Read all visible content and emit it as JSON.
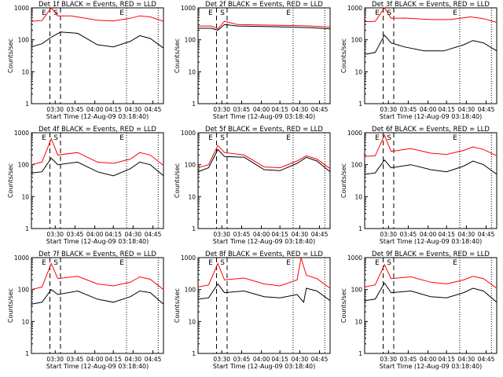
{
  "chart_data": {
    "type": "line",
    "yscale": "log",
    "ylim": [
      1,
      1000
    ],
    "x_tick_labels": [
      "03:30",
      "03:45",
      "04:00",
      "04:15",
      "04:30",
      "04:45"
    ],
    "y_tick_labels": [
      "1",
      "10",
      "100",
      "1000"
    ],
    "xlabel": "Start Time (12-Aug-09 03:18:40)",
    "ylabel": "Counts/sec",
    "legend_text": "BLACK = Events, RED = LLD",
    "colors": {
      "events": "#000000",
      "lld": "#ff0000"
    },
    "x_hours_span": [
      "03:18:40",
      "04:58:00"
    ],
    "marker_labels": [
      "E",
      "S",
      "E"
    ],
    "panels": [
      {
        "title": "Det 1f",
        "events": [
          [
            0,
            60
          ],
          [
            0.08,
            75
          ],
          [
            0.15,
            120
          ],
          [
            0.22,
            175
          ],
          [
            0.35,
            160
          ],
          [
            0.5,
            70
          ],
          [
            0.62,
            60
          ],
          [
            0.75,
            90
          ],
          [
            0.82,
            135
          ],
          [
            0.9,
            110
          ],
          [
            1,
            55
          ]
        ],
        "lld": [
          [
            0,
            380
          ],
          [
            0.08,
            400
          ],
          [
            0.15,
            1000
          ],
          [
            0.2,
            560
          ],
          [
            0.3,
            560
          ],
          [
            0.5,
            410
          ],
          [
            0.62,
            390
          ],
          [
            0.75,
            470
          ],
          [
            0.82,
            560
          ],
          [
            0.9,
            520
          ],
          [
            1,
            380
          ]
        ]
      },
      {
        "title": "Det 2f",
        "events": [
          [
            0,
            230
          ],
          [
            0.1,
            230
          ],
          [
            0.15,
            200
          ],
          [
            0.2,
            300
          ],
          [
            0.3,
            270
          ],
          [
            0.5,
            260
          ],
          [
            0.7,
            250
          ],
          [
            0.85,
            240
          ],
          [
            1,
            220
          ]
        ],
        "lld": [
          [
            0,
            270
          ],
          [
            0.1,
            270
          ],
          [
            0.15,
            220
          ],
          [
            0.2,
            380
          ],
          [
            0.3,
            300
          ],
          [
            0.5,
            290
          ],
          [
            0.7,
            280
          ],
          [
            0.85,
            270
          ],
          [
            1,
            250
          ]
        ]
      },
      {
        "title": "Det 3f",
        "events": [
          [
            0,
            35
          ],
          [
            0.08,
            40
          ],
          [
            0.15,
            140
          ],
          [
            0.2,
            80
          ],
          [
            0.3,
            60
          ],
          [
            0.45,
            45
          ],
          [
            0.6,
            45
          ],
          [
            0.75,
            70
          ],
          [
            0.82,
            95
          ],
          [
            0.9,
            80
          ],
          [
            1,
            45
          ]
        ],
        "lld": [
          [
            0,
            370
          ],
          [
            0.08,
            380
          ],
          [
            0.15,
            1000
          ],
          [
            0.2,
            470
          ],
          [
            0.3,
            480
          ],
          [
            0.5,
            430
          ],
          [
            0.65,
            430
          ],
          [
            0.8,
            520
          ],
          [
            0.9,
            460
          ],
          [
            1,
            350
          ]
        ]
      },
      {
        "title": "Det 4f",
        "events": [
          [
            0,
            55
          ],
          [
            0.08,
            60
          ],
          [
            0.15,
            160
          ],
          [
            0.2,
            100
          ],
          [
            0.35,
            120
          ],
          [
            0.5,
            60
          ],
          [
            0.62,
            45
          ],
          [
            0.75,
            75
          ],
          [
            0.82,
            120
          ],
          [
            0.9,
            100
          ],
          [
            1,
            45
          ]
        ],
        "lld": [
          [
            0,
            100
          ],
          [
            0.08,
            120
          ],
          [
            0.15,
            650
          ],
          [
            0.2,
            200
          ],
          [
            0.35,
            240
          ],
          [
            0.5,
            120
          ],
          [
            0.62,
            110
          ],
          [
            0.75,
            150
          ],
          [
            0.82,
            240
          ],
          [
            0.9,
            200
          ],
          [
            1,
            95
          ]
        ]
      },
      {
        "title": "Det 5f",
        "events": [
          [
            0,
            60
          ],
          [
            0.08,
            80
          ],
          [
            0.15,
            300
          ],
          [
            0.2,
            180
          ],
          [
            0.35,
            170
          ],
          [
            0.5,
            70
          ],
          [
            0.62,
            65
          ],
          [
            0.75,
            110
          ],
          [
            0.82,
            170
          ],
          [
            0.9,
            130
          ],
          [
            1,
            60
          ]
        ],
        "lld": [
          [
            0,
            80
          ],
          [
            0.08,
            100
          ],
          [
            0.15,
            400
          ],
          [
            0.2,
            240
          ],
          [
            0.35,
            200
          ],
          [
            0.5,
            85
          ],
          [
            0.62,
            80
          ],
          [
            0.75,
            130
          ],
          [
            0.82,
            190
          ],
          [
            0.9,
            150
          ],
          [
            1,
            75
          ]
        ]
      },
      {
        "title": "Det 6f",
        "events": [
          [
            0,
            50
          ],
          [
            0.08,
            55
          ],
          [
            0.15,
            140
          ],
          [
            0.2,
            80
          ],
          [
            0.35,
            100
          ],
          [
            0.5,
            70
          ],
          [
            0.62,
            60
          ],
          [
            0.75,
            90
          ],
          [
            0.82,
            130
          ],
          [
            0.9,
            100
          ],
          [
            1,
            50
          ]
        ],
        "lld": [
          [
            0,
            180
          ],
          [
            0.08,
            190
          ],
          [
            0.15,
            850
          ],
          [
            0.2,
            260
          ],
          [
            0.35,
            320
          ],
          [
            0.5,
            230
          ],
          [
            0.62,
            210
          ],
          [
            0.75,
            280
          ],
          [
            0.82,
            360
          ],
          [
            0.9,
            300
          ],
          [
            1,
            190
          ]
        ]
      },
      {
        "title": "Det 7f",
        "events": [
          [
            0,
            35
          ],
          [
            0.08,
            40
          ],
          [
            0.15,
            100
          ],
          [
            0.2,
            70
          ],
          [
            0.35,
            90
          ],
          [
            0.5,
            50
          ],
          [
            0.62,
            40
          ],
          [
            0.75,
            60
          ],
          [
            0.82,
            90
          ],
          [
            0.9,
            80
          ],
          [
            1,
            35
          ]
        ],
        "lld": [
          [
            0,
            100
          ],
          [
            0.08,
            120
          ],
          [
            0.15,
            650
          ],
          [
            0.2,
            220
          ],
          [
            0.35,
            260
          ],
          [
            0.5,
            150
          ],
          [
            0.62,
            130
          ],
          [
            0.75,
            170
          ],
          [
            0.82,
            250
          ],
          [
            0.9,
            210
          ],
          [
            1,
            100
          ]
        ]
      },
      {
        "title": "Det 8f",
        "events": [
          [
            0,
            50
          ],
          [
            0.08,
            55
          ],
          [
            0.15,
            150
          ],
          [
            0.2,
            80
          ],
          [
            0.35,
            90
          ],
          [
            0.5,
            60
          ],
          [
            0.62,
            55
          ],
          [
            0.75,
            70
          ],
          [
            0.8,
            40
          ],
          [
            0.82,
            110
          ],
          [
            0.9,
            90
          ],
          [
            1,
            45
          ]
        ],
        "lld": [
          [
            0,
            120
          ],
          [
            0.08,
            140
          ],
          [
            0.15,
            650
          ],
          [
            0.2,
            200
          ],
          [
            0.35,
            230
          ],
          [
            0.5,
            150
          ],
          [
            0.62,
            130
          ],
          [
            0.75,
            200
          ],
          [
            0.78,
            1000
          ],
          [
            0.82,
            280
          ],
          [
            0.9,
            220
          ],
          [
            1,
            110
          ]
        ]
      },
      {
        "title": "Det 9f",
        "events": [
          [
            0,
            45
          ],
          [
            0.08,
            50
          ],
          [
            0.15,
            160
          ],
          [
            0.2,
            80
          ],
          [
            0.35,
            90
          ],
          [
            0.5,
            60
          ],
          [
            0.62,
            55
          ],
          [
            0.75,
            80
          ],
          [
            0.82,
            110
          ],
          [
            0.9,
            90
          ],
          [
            1,
            40
          ]
        ],
        "lld": [
          [
            0,
            120
          ],
          [
            0.08,
            140
          ],
          [
            0.15,
            600
          ],
          [
            0.2,
            220
          ],
          [
            0.35,
            250
          ],
          [
            0.5,
            170
          ],
          [
            0.62,
            150
          ],
          [
            0.75,
            200
          ],
          [
            0.82,
            260
          ],
          [
            0.9,
            220
          ],
          [
            1,
            110
          ]
        ]
      }
    ]
  }
}
